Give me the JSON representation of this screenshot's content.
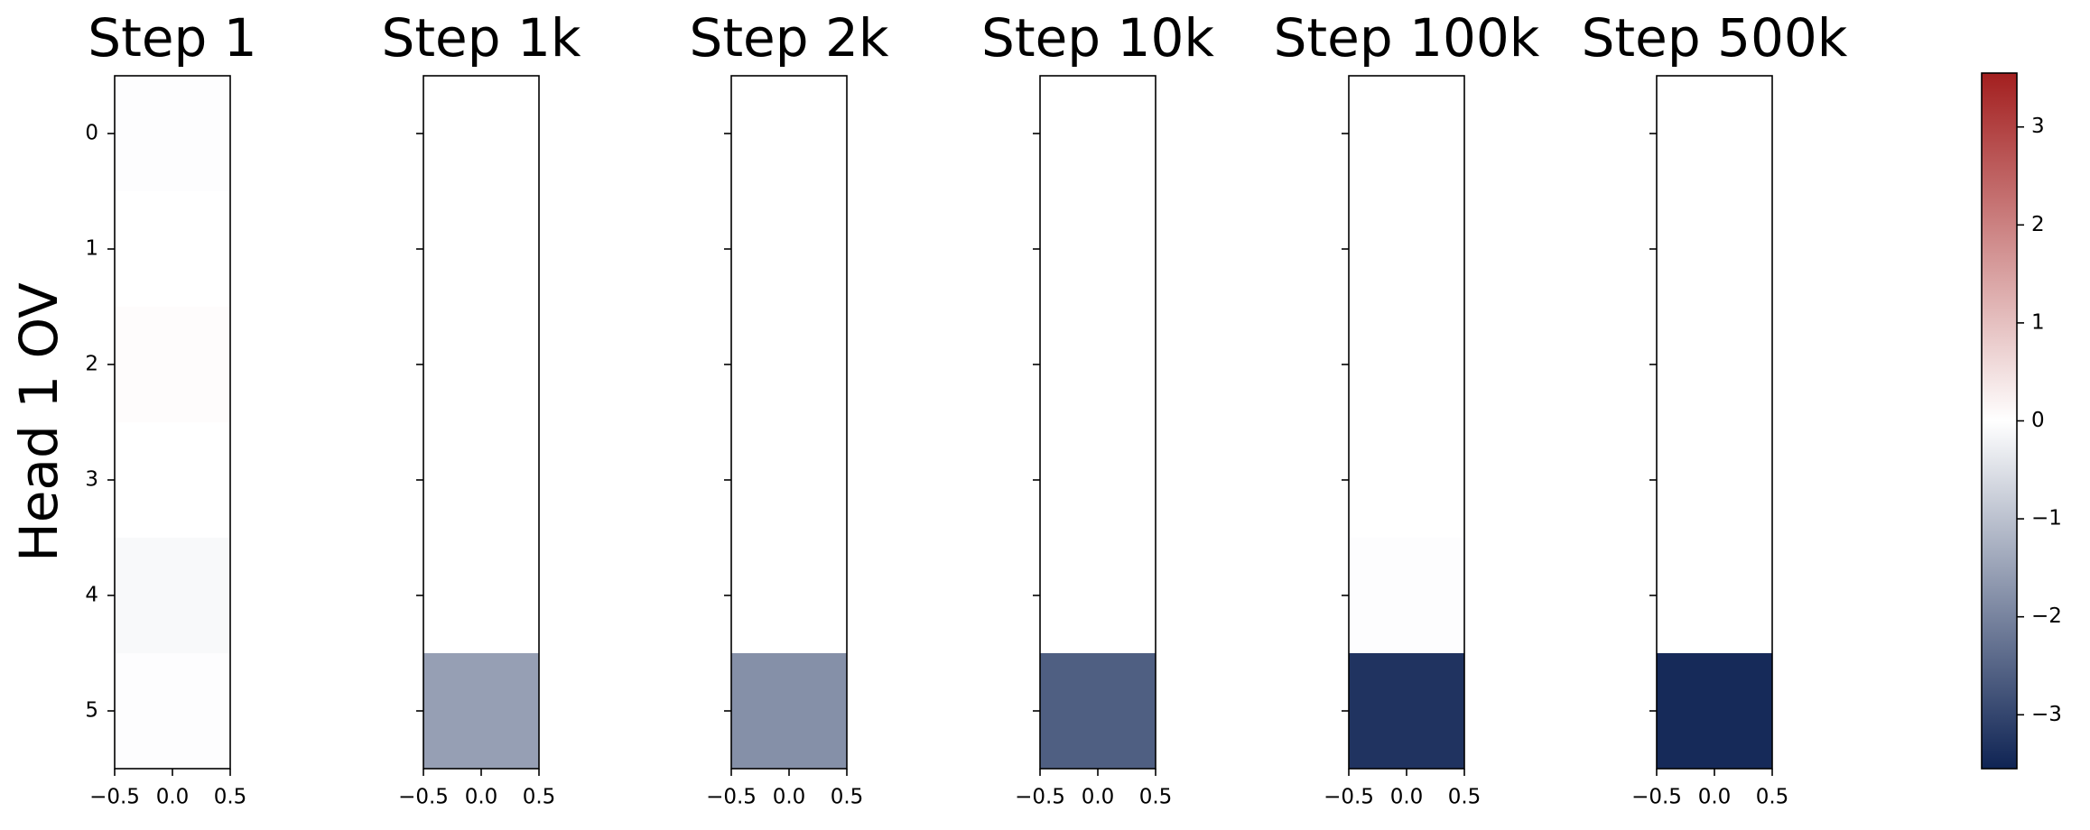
{
  "chart_data": {
    "type": "heatmap",
    "ylabel": "Head 1 OV",
    "panels": [
      {
        "title": "Step 1",
        "values": [
          -0.03,
          0,
          0.05,
          0,
          -0.1,
          -0.03
        ]
      },
      {
        "title": "Step 1k",
        "values": [
          0,
          0,
          0,
          0,
          0,
          -1.55
        ]
      },
      {
        "title": "Step 2k",
        "values": [
          0,
          0,
          0,
          0,
          0,
          -1.8
        ]
      },
      {
        "title": "Step 10k",
        "values": [
          0,
          0,
          0,
          0,
          0,
          -2.6
        ]
      },
      {
        "title": "Step 100k",
        "values": [
          0,
          0,
          0,
          0,
          -0.03,
          -3.3
        ]
      },
      {
        "title": "Step 500k",
        "values": [
          0,
          0,
          0,
          0,
          0,
          -3.45
        ]
      }
    ],
    "xlim": [
      -0.5,
      0.5
    ],
    "xticks": [
      {
        "value": -0.5,
        "label": "−0.5"
      },
      {
        "value": 0,
        "label": "0.0"
      },
      0.5
    ],
    "ylim": [
      5.5,
      -0.5
    ],
    "yticks": [
      0,
      1,
      2,
      3,
      4,
      5
    ],
    "colorbar": {
      "lim": [
        -3.55,
        3.55
      ],
      "ticks": [
        {
          "value": -3,
          "label": "−3"
        },
        {
          "value": -2,
          "label": "−2"
        },
        {
          "value": -1,
          "label": "−1"
        },
        0,
        1,
        2,
        3
      ],
      "colors": [
        "#0f2454",
        "#ffffff",
        "#a31f1f"
      ]
    }
  }
}
